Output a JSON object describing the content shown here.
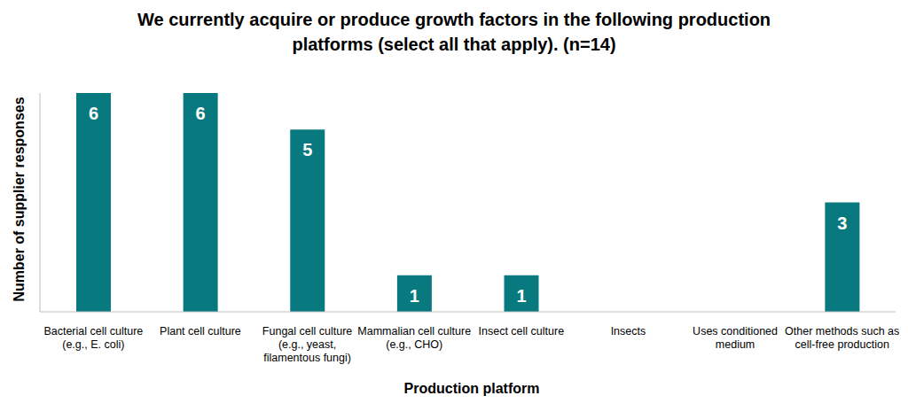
{
  "chart_data": {
    "type": "bar",
    "title": "We currently acquire or produce growth factors in the following production platforms (select all that apply). (n=14)",
    "x_label": "Production platform",
    "y_label": "Number of supplier responses",
    "categories": [
      "Bacterial cell culture (e.g., E. coli)",
      "Plant cell culture",
      "Fungal cell culture (e.g., yeast, filamentous fungi)",
      "Mammalian cell culture (e.g., CHO)",
      "Insect cell culture",
      "Insects",
      "Uses conditioned medium",
      "Other methods such as cell-free production"
    ],
    "values": [
      6,
      6,
      5,
      1,
      1,
      0,
      0,
      3
    ],
    "color": "#08797e",
    "ylim": [
      0,
      6
    ],
    "data_labels": true,
    "tick_labels": "x",
    "grid": false
  }
}
